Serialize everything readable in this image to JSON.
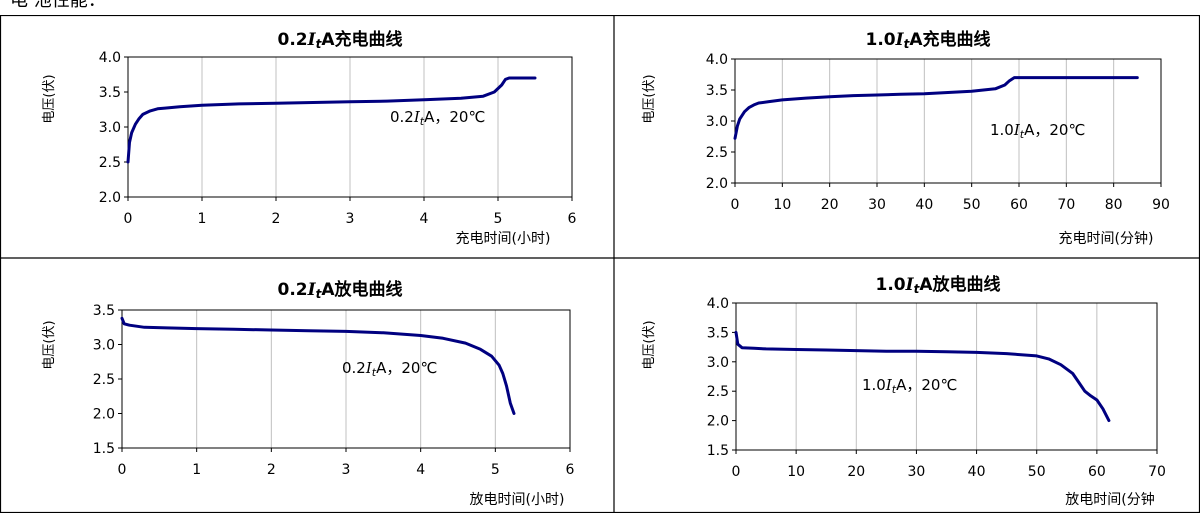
{
  "page": {
    "heading": "电 池性能："
  },
  "colors": {
    "line": "#000080",
    "grid": "#c0c0c0",
    "border": "#000000"
  },
  "chart_data": [
    {
      "type": "line",
      "title": "0.2ItA充电曲线",
      "title_parts": [
        "0.2",
        "I",
        "t",
        "A充电曲线"
      ],
      "xlabel": "充电时间(小时)",
      "ylabel": "电压(伏)",
      "xlim": [
        0,
        6
      ],
      "ylim": [
        2.0,
        4.0
      ],
      "xticks": [
        0,
        1,
        2,
        3,
        4,
        5,
        6
      ],
      "yticks": [
        2.0,
        2.5,
        3.0,
        3.5,
        4.0
      ],
      "yticklabels": [
        "2.0",
        "2.5",
        "3.0",
        "3.5",
        "4.0"
      ],
      "grid": "vertical",
      "annotation_parts": [
        "0.2",
        "I",
        "t",
        "A，20℃"
      ],
      "series": [
        {
          "x": [
            0,
            0.02,
            0.05,
            0.1,
            0.15,
            0.2,
            0.3,
            0.4,
            0.5,
            0.7,
            1.0,
            1.5,
            2.0,
            2.5,
            3.0,
            3.5,
            4.0,
            4.5,
            4.8,
            4.95,
            5.05,
            5.1,
            5.15,
            5.2,
            5.5
          ],
          "y": [
            2.5,
            2.78,
            2.92,
            3.04,
            3.12,
            3.18,
            3.23,
            3.26,
            3.27,
            3.29,
            3.31,
            3.33,
            3.34,
            3.35,
            3.36,
            3.37,
            3.39,
            3.41,
            3.44,
            3.5,
            3.6,
            3.68,
            3.7,
            3.7,
            3.7
          ]
        }
      ]
    },
    {
      "type": "line",
      "title": "1.0ItA充电曲线",
      "title_parts": [
        "1.0",
        "I",
        "t",
        "A充电曲线"
      ],
      "xlabel": "充电时间(分钟)",
      "ylabel": "电压(伏)",
      "xlim": [
        0,
        90
      ],
      "ylim": [
        2.0,
        4.0
      ],
      "xticks": [
        0,
        10,
        20,
        30,
        40,
        50,
        60,
        70,
        80,
        90
      ],
      "yticks": [
        2.0,
        2.5,
        3.0,
        3.5,
        4.0
      ],
      "yticklabels": [
        "2.0",
        "2.5",
        "3.0",
        "3.5",
        "4.0"
      ],
      "grid": "vertical",
      "annotation_parts": [
        "1.0",
        "I",
        "t",
        "A，20℃"
      ],
      "series": [
        {
          "x": [
            0,
            0.5,
            1,
            2,
            3,
            4,
            5,
            7,
            10,
            15,
            20,
            25,
            30,
            35,
            40,
            45,
            50,
            55,
            57,
            58,
            59,
            60,
            65,
            70,
            75,
            80,
            85
          ],
          "y": [
            2.72,
            2.92,
            3.03,
            3.15,
            3.22,
            3.26,
            3.29,
            3.31,
            3.34,
            3.37,
            3.39,
            3.41,
            3.42,
            3.43,
            3.44,
            3.46,
            3.48,
            3.52,
            3.58,
            3.65,
            3.7,
            3.7,
            3.7,
            3.7,
            3.7,
            3.7,
            3.7
          ]
        }
      ]
    },
    {
      "type": "line",
      "title": "0.2ItA放电曲线",
      "title_parts": [
        "0.2",
        "I",
        "t",
        "A放电曲线"
      ],
      "xlabel": "放电时间(小时)",
      "ylabel": "电压(伏)",
      "xlim": [
        0,
        6
      ],
      "ylim": [
        1.5,
        3.5
      ],
      "xticks": [
        0,
        1,
        2,
        3,
        4,
        5,
        6
      ],
      "yticks": [
        1.5,
        2.0,
        2.5,
        3.0,
        3.5
      ],
      "yticklabels": [
        "1.5",
        "2.0",
        "2.5",
        "3.0",
        "3.5"
      ],
      "grid": "vertical",
      "annotation_parts": [
        "0.2",
        "I",
        "t",
        "A，20℃"
      ],
      "series": [
        {
          "x": [
            0,
            0.03,
            0.1,
            0.3,
            0.6,
            1.0,
            1.5,
            2.0,
            2.5,
            3.0,
            3.5,
            4.0,
            4.3,
            4.6,
            4.8,
            4.95,
            5.05,
            5.1,
            5.15,
            5.2,
            5.25
          ],
          "y": [
            3.38,
            3.3,
            3.28,
            3.25,
            3.24,
            3.23,
            3.22,
            3.21,
            3.2,
            3.19,
            3.17,
            3.13,
            3.09,
            3.02,
            2.93,
            2.83,
            2.7,
            2.58,
            2.4,
            2.15,
            2.0
          ]
        }
      ]
    },
    {
      "type": "line",
      "title": "1.0ItA放电曲线",
      "title_parts": [
        "1.0",
        "I",
        "t",
        "A放电曲线"
      ],
      "xlabel": "放电时间(分钟",
      "ylabel": "电压(伏)",
      "xlim": [
        0,
        70
      ],
      "ylim": [
        1.5,
        4.0
      ],
      "xticks": [
        0,
        10,
        20,
        30,
        40,
        50,
        60,
        70
      ],
      "yticks": [
        1.5,
        2.0,
        2.5,
        3.0,
        3.5,
        4.0
      ],
      "yticklabels": [
        "1.5",
        "2.0",
        "2.5",
        "3.0",
        "3.5",
        "4.0"
      ],
      "grid": "vertical",
      "annotation_parts": [
        "1.0",
        "I",
        "t",
        "A，20℃"
      ],
      "series": [
        {
          "x": [
            0,
            0.3,
            1,
            3,
            5,
            10,
            15,
            20,
            25,
            30,
            35,
            40,
            45,
            50,
            52,
            54,
            56,
            57,
            58,
            59,
            60,
            61,
            62
          ],
          "y": [
            3.5,
            3.3,
            3.24,
            3.23,
            3.22,
            3.21,
            3.2,
            3.19,
            3.18,
            3.18,
            3.17,
            3.16,
            3.14,
            3.1,
            3.05,
            2.95,
            2.8,
            2.65,
            2.5,
            2.42,
            2.35,
            2.2,
            2.0
          ]
        }
      ]
    }
  ]
}
